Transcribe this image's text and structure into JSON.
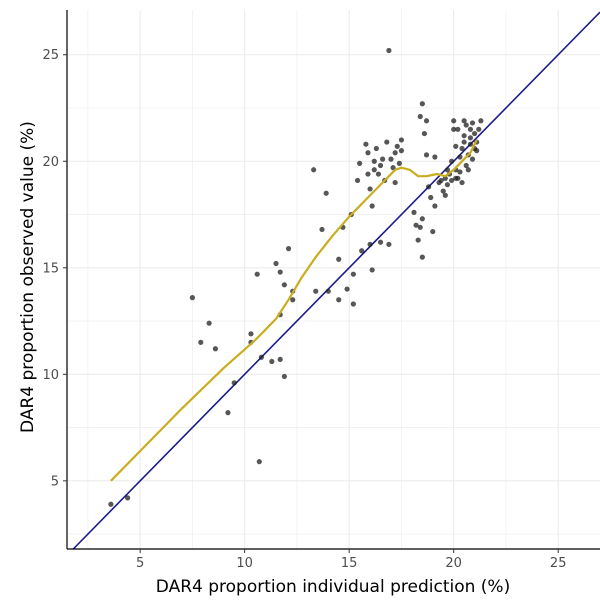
{
  "chart_data": {
    "type": "scatter",
    "xlabel": "DAR4 proportion individual prediction (%)",
    "ylabel": "DAR4 proportion observed value (%)",
    "xlim": [
      1.5,
      27.0
    ],
    "ylim": [
      1.8,
      27.1
    ],
    "xticks": [
      5,
      10,
      15,
      20,
      25
    ],
    "yticks": [
      5,
      10,
      15,
      20,
      25
    ],
    "grid": true,
    "identity_line": {
      "slope": 1,
      "intercept": 0
    },
    "points": [
      [
        3.6,
        3.9
      ],
      [
        4.4,
        4.2
      ],
      [
        7.5,
        13.6
      ],
      [
        7.9,
        11.5
      ],
      [
        8.3,
        12.4
      ],
      [
        8.6,
        11.2
      ],
      [
        9.2,
        8.2
      ],
      [
        9.5,
        9.6
      ],
      [
        10.3,
        11.9
      ],
      [
        10.3,
        11.5
      ],
      [
        10.6,
        14.7
      ],
      [
        10.8,
        10.8
      ],
      [
        10.7,
        5.9
      ],
      [
        11.3,
        10.6
      ],
      [
        11.5,
        15.2
      ],
      [
        11.7,
        14.8
      ],
      [
        11.7,
        10.7
      ],
      [
        11.9,
        9.9
      ],
      [
        11.7,
        12.8
      ],
      [
        11.9,
        14.2
      ],
      [
        12.1,
        15.9
      ],
      [
        12.3,
        13.5
      ],
      [
        12.3,
        13.9
      ],
      [
        13.3,
        19.6
      ],
      [
        13.4,
        13.9
      ],
      [
        13.9,
        18.5
      ],
      [
        14.0,
        13.9
      ],
      [
        13.7,
        16.8
      ],
      [
        14.5,
        13.5
      ],
      [
        14.5,
        15.4
      ],
      [
        14.7,
        16.9
      ],
      [
        14.9,
        14.0
      ],
      [
        15.2,
        13.3
      ],
      [
        15.1,
        17.5
      ],
      [
        15.2,
        14.7
      ],
      [
        15.5,
        19.9
      ],
      [
        15.4,
        19.1
      ],
      [
        15.6,
        15.8
      ],
      [
        15.8,
        20.8
      ],
      [
        15.9,
        19.4
      ],
      [
        16.0,
        16.1
      ],
      [
        15.9,
        20.4
      ],
      [
        16.0,
        18.7
      ],
      [
        16.2,
        19.6
      ],
      [
        16.1,
        14.9
      ],
      [
        16.1,
        17.9
      ],
      [
        16.2,
        20.0
      ],
      [
        16.3,
        20.6
      ],
      [
        16.4,
        19.4
      ],
      [
        16.5,
        19.8
      ],
      [
        16.5,
        16.2
      ],
      [
        16.6,
        20.1
      ],
      [
        16.7,
        19.1
      ],
      [
        16.8,
        20.9
      ],
      [
        16.9,
        25.2
      ],
      [
        16.9,
        16.1
      ],
      [
        17.0,
        20.1
      ],
      [
        17.1,
        19.7
      ],
      [
        17.2,
        19.0
      ],
      [
        17.2,
        20.4
      ],
      [
        17.3,
        20.7
      ],
      [
        17.5,
        21.0
      ],
      [
        17.4,
        19.9
      ],
      [
        17.5,
        20.5
      ],
      [
        18.1,
        17.6
      ],
      [
        18.2,
        17.0
      ],
      [
        18.3,
        16.3
      ],
      [
        18.4,
        22.1
      ],
      [
        18.4,
        16.9
      ],
      [
        18.5,
        22.7
      ],
      [
        18.5,
        17.3
      ],
      [
        18.5,
        15.5
      ],
      [
        18.6,
        21.3
      ],
      [
        18.7,
        20.3
      ],
      [
        18.7,
        21.9
      ],
      [
        18.8,
        18.8
      ],
      [
        18.9,
        18.3
      ],
      [
        19.0,
        16.7
      ],
      [
        19.1,
        17.9
      ],
      [
        19.1,
        20.2
      ],
      [
        19.3,
        19.0
      ],
      [
        19.4,
        19.1
      ],
      [
        19.5,
        18.6
      ],
      [
        19.6,
        18.4
      ],
      [
        19.6,
        19.2
      ],
      [
        19.7,
        19.6
      ],
      [
        19.7,
        18.9
      ],
      [
        19.8,
        19.4
      ],
      [
        19.9,
        20.0
      ],
      [
        19.9,
        19.1
      ],
      [
        20.0,
        21.5
      ],
      [
        20.0,
        21.9
      ],
      [
        20.1,
        19.2
      ],
      [
        20.1,
        19.6
      ],
      [
        20.1,
        20.7
      ],
      [
        20.2,
        19.2
      ],
      [
        20.2,
        21.5
      ],
      [
        20.3,
        20.2
      ],
      [
        20.3,
        19.5
      ],
      [
        20.4,
        20.6
      ],
      [
        20.4,
        19.0
      ],
      [
        20.5,
        20.9
      ],
      [
        20.5,
        21.2
      ],
      [
        20.5,
        21.9
      ],
      [
        20.6,
        19.8
      ],
      [
        20.6,
        21.7
      ],
      [
        20.7,
        20.3
      ],
      [
        20.7,
        19.6
      ],
      [
        20.8,
        21.5
      ],
      [
        20.8,
        21.1
      ],
      [
        20.8,
        20.8
      ],
      [
        20.9,
        20.1
      ],
      [
        20.9,
        21.8
      ],
      [
        21.0,
        20.6
      ],
      [
        21.0,
        21.3
      ],
      [
        21.1,
        20.5
      ],
      [
        21.1,
        20.9
      ],
      [
        21.2,
        21.5
      ],
      [
        21.3,
        21.9
      ]
    ],
    "smooth": [
      [
        3.6,
        5.0
      ],
      [
        5.0,
        6.4
      ],
      [
        7.0,
        8.4
      ],
      [
        9.0,
        10.3
      ],
      [
        10.5,
        11.6
      ],
      [
        11.5,
        12.6
      ],
      [
        12.1,
        13.5
      ],
      [
        12.7,
        14.5
      ],
      [
        13.4,
        15.5
      ],
      [
        14.2,
        16.5
      ],
      [
        15.0,
        17.4
      ],
      [
        15.8,
        18.2
      ],
      [
        16.6,
        19.0
      ],
      [
        17.2,
        19.6
      ],
      [
        17.5,
        19.7
      ],
      [
        17.9,
        19.6
      ],
      [
        18.3,
        19.3
      ],
      [
        18.7,
        19.3
      ],
      [
        19.2,
        19.4
      ],
      [
        19.6,
        19.3
      ],
      [
        20.0,
        19.6
      ],
      [
        20.4,
        20.0
      ],
      [
        20.8,
        20.4
      ],
      [
        21.1,
        21.0
      ]
    ],
    "colors": {
      "points": "#1f1f1f",
      "identity": "#1a1a8c",
      "smooth": "#c9ad1f",
      "grid": "#ebebeb",
      "axis": "#000000"
    }
  }
}
